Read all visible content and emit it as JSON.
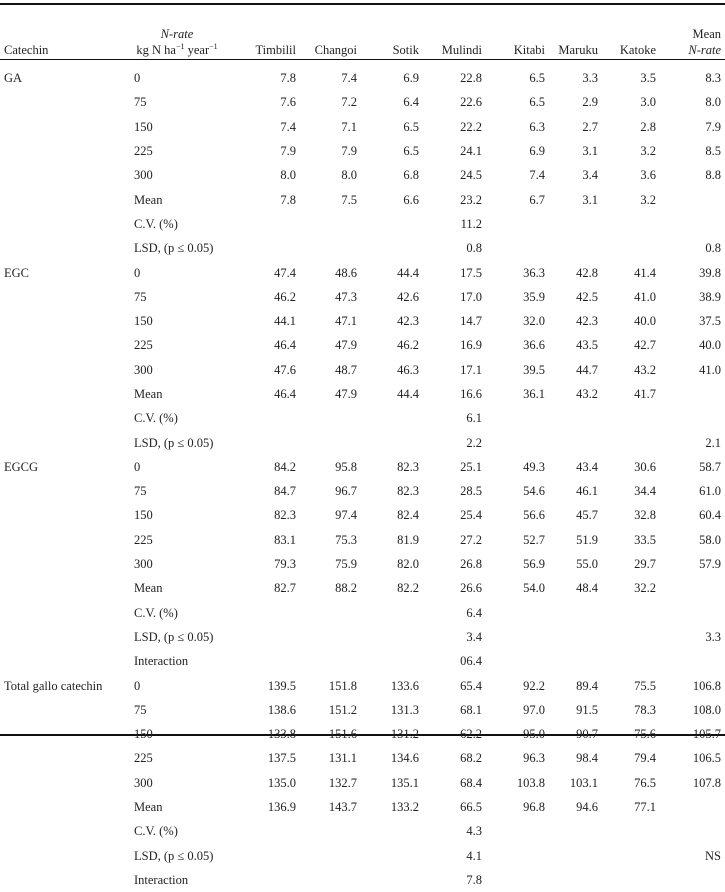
{
  "header": {
    "catechin": "Catechin",
    "nrate_line1": "N-rate",
    "nrate_line2": "kg N ha",
    "nrate_sup1": "−1",
    "nrate_year": " year",
    "nrate_sup2": "−1",
    "sites": [
      "Timbilil",
      "Changoi",
      "Sotik",
      "Mulindi",
      "Kitabi",
      "Maruku",
      "Katoke"
    ],
    "mean_line1": "Mean",
    "mean_line2": "N-rate"
  },
  "groups": [
    {
      "name": "GA",
      "rows": [
        {
          "label": "0",
          "values": [
            "7.8",
            "7.4",
            "6.9",
            "22.8",
            "6.5",
            "3.3",
            "3.5",
            "8.3"
          ]
        },
        {
          "label": "75",
          "values": [
            "7.6",
            "7.2",
            "6.4",
            "22.6",
            "6.5",
            "2.9",
            "3.0",
            "8.0"
          ]
        },
        {
          "label": "150",
          "values": [
            "7.4",
            "7.1",
            "6.5",
            "22.2",
            "6.3",
            "2.7",
            "2.8",
            "7.9"
          ]
        },
        {
          "label": "225",
          "values": [
            "7.9",
            "7.9",
            "6.5",
            "24.1",
            "6.9",
            "3.1",
            "3.2",
            "8.5"
          ]
        },
        {
          "label": "300",
          "values": [
            "8.0",
            "8.0",
            "6.8",
            "24.5",
            "7.4",
            "3.4",
            "3.6",
            "8.8"
          ]
        },
        {
          "label": "Mean",
          "values": [
            "7.8",
            "7.5",
            "6.6",
            "23.2",
            "6.7",
            "3.1",
            "3.2",
            ""
          ]
        },
        {
          "label": "C.V. (%)",
          "values": [
            "",
            "",
            "",
            "11.2",
            "",
            "",
            "",
            ""
          ]
        },
        {
          "label": "LSD, (p ≤ 0.05)",
          "values": [
            "",
            "",
            "",
            "0.8",
            "",
            "",
            "",
            "0.8"
          ]
        }
      ]
    },
    {
      "name": "EGC",
      "rows": [
        {
          "label": "0",
          "values": [
            "47.4",
            "48.6",
            "44.4",
            "17.5",
            "36.3",
            "42.8",
            "41.4",
            "39.8"
          ]
        },
        {
          "label": "75",
          "values": [
            "46.2",
            "47.3",
            "42.6",
            "17.0",
            "35.9",
            "42.5",
            "41.0",
            "38.9"
          ]
        },
        {
          "label": "150",
          "values": [
            "44.1",
            "47.1",
            "42.3",
            "14.7",
            "32.0",
            "42.3",
            "40.0",
            "37.5"
          ]
        },
        {
          "label": "225",
          "values": [
            "46.4",
            "47.9",
            "46.2",
            "16.9",
            "36.6",
            "43.5",
            "42.7",
            "40.0"
          ]
        },
        {
          "label": "300",
          "values": [
            "47.6",
            "48.7",
            "46.3",
            "17.1",
            "39.5",
            "44.7",
            "43.2",
            "41.0"
          ]
        },
        {
          "label": "Mean",
          "values": [
            "46.4",
            "47.9",
            "44.4",
            "16.6",
            "36.1",
            "43.2",
            "41.7",
            ""
          ]
        },
        {
          "label": "C.V. (%)",
          "values": [
            "",
            "",
            "",
            "6.1",
            "",
            "",
            "",
            ""
          ]
        },
        {
          "label": "LSD, (p ≤ 0.05)",
          "values": [
            "",
            "",
            "",
            "2.2",
            "",
            "",
            "",
            "2.1"
          ]
        }
      ]
    },
    {
      "name": "EGCG",
      "rows": [
        {
          "label": "0",
          "values": [
            "84.2",
            "95.8",
            "82.3",
            "25.1",
            "49.3",
            "43.4",
            "30.6",
            "58.7"
          ]
        },
        {
          "label": "75",
          "values": [
            "84.7",
            "96.7",
            "82.3",
            "28.5",
            "54.6",
            "46.1",
            "34.4",
            "61.0"
          ]
        },
        {
          "label": "150",
          "values": [
            "82.3",
            "97.4",
            "82.4",
            "25.4",
            "56.6",
            "45.7",
            "32.8",
            "60.4"
          ]
        },
        {
          "label": "225",
          "values": [
            "83.1",
            "75.3",
            "81.9",
            "27.2",
            "52.7",
            "51.9",
            "33.5",
            "58.0"
          ]
        },
        {
          "label": "300",
          "values": [
            "79.3",
            "75.9",
            "82.0",
            "26.8",
            "56.9",
            "55.0",
            "29.7",
            "57.9"
          ]
        },
        {
          "label": "Mean",
          "values": [
            "82.7",
            "88.2",
            "82.2",
            "26.6",
            "54.0",
            "48.4",
            "32.2",
            ""
          ]
        },
        {
          "label": "C.V. (%)",
          "values": [
            "",
            "",
            "",
            "6.4",
            "",
            "",
            "",
            ""
          ]
        },
        {
          "label": "LSD, (p ≤ 0.05)",
          "values": [
            "",
            "",
            "",
            "3.4",
            "",
            "",
            "",
            "3.3"
          ]
        },
        {
          "label": "Interaction",
          "values": [
            "",
            "",
            "",
            "06.4",
            "",
            "",
            "",
            ""
          ]
        }
      ]
    },
    {
      "name": "Total gallo catechin",
      "rows": [
        {
          "label": "0",
          "values": [
            "139.5",
            "151.8",
            "133.6",
            "65.4",
            "92.2",
            "89.4",
            "75.5",
            "106.8"
          ]
        },
        {
          "label": "75",
          "values": [
            "138.6",
            "151.2",
            "131.3",
            "68.1",
            "97.0",
            "91.5",
            "78.3",
            "108.0"
          ]
        },
        {
          "label": "150",
          "values": [
            "133.8",
            "151.6",
            "131.2",
            "62.2",
            "95.0",
            "90.7",
            "75.6",
            "105.7"
          ]
        },
        {
          "label": "225",
          "values": [
            "137.5",
            "131.1",
            "134.6",
            "68.2",
            "96.3",
            "98.4",
            "79.4",
            "106.5"
          ]
        },
        {
          "label": "300",
          "values": [
            "135.0",
            "132.7",
            "135.1",
            "68.4",
            "103.8",
            "103.1",
            "76.5",
            "107.8"
          ]
        },
        {
          "label": "Mean",
          "values": [
            "136.9",
            "143.7",
            "133.2",
            "66.5",
            "96.8",
            "94.6",
            "77.1",
            ""
          ]
        },
        {
          "label": "C.V. (%)",
          "values": [
            "",
            "",
            "",
            "4.3",
            "",
            "",
            "",
            ""
          ]
        },
        {
          "label": "LSD, (p ≤ 0.05)",
          "values": [
            "",
            "",
            "",
            "4.1",
            "",
            "",
            "",
            "NS"
          ]
        },
        {
          "label": "Interaction",
          "values": [
            "",
            "",
            "",
            "7.8",
            "",
            "",
            "",
            ""
          ]
        }
      ]
    }
  ]
}
